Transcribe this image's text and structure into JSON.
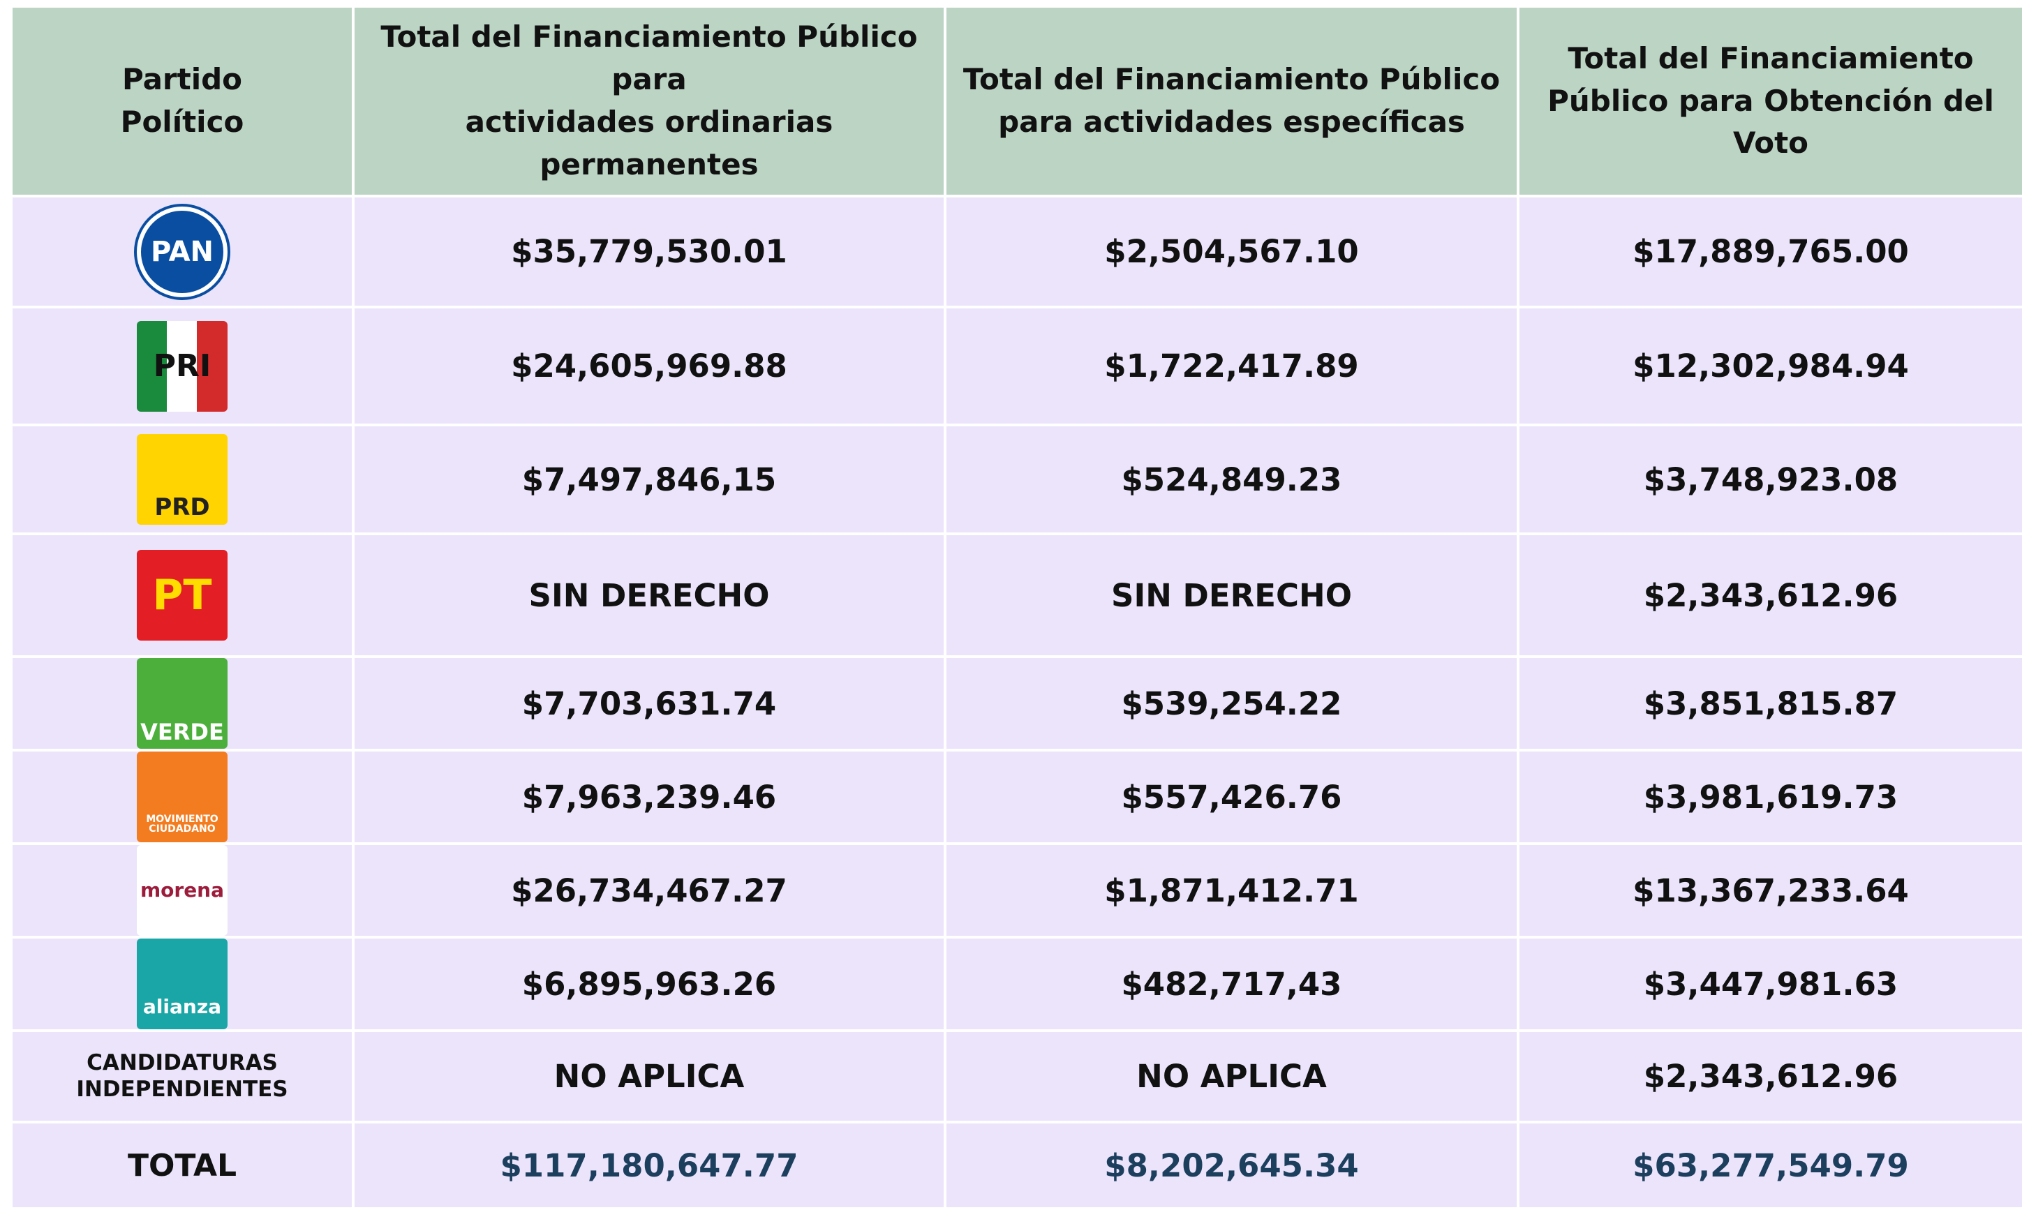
{
  "table": {
    "headers": [
      "Partido\nPolítico",
      "Total del Financiamiento Público para\nactividades ordinarias permanentes",
      "Total del Financiamiento Público\npara actividades  específicas",
      "Total del Financiamiento\nPúblico para Obtención del\nVoto"
    ],
    "rows": [
      {
        "logo": "PAN",
        "cells": [
          "$35,779,530.01",
          "$2,504,567.10",
          "$17,889,765.00"
        ]
      },
      {
        "logo": "PRI",
        "cells": [
          "$24,605,969.88",
          "$1,722,417.89",
          "$12,302,984.94"
        ]
      },
      {
        "logo": "PRD",
        "cells": [
          "$7,497,846,15",
          "$524,849.23",
          "$3,748,923.08"
        ]
      },
      {
        "logo": "PT",
        "cells": [
          "SIN DERECHO",
          "SIN DERECHO",
          "$2,343,612.96"
        ]
      },
      {
        "logo": "VERDE",
        "cells": [
          "$7,703,631.74",
          "$539,254.22",
          "$3,851,815.87"
        ]
      },
      {
        "logo": "MOVIMIENTO CIUDADANO",
        "cells": [
          "$7,963,239.46",
          "$557,426.76",
          "$3,981,619.73"
        ]
      },
      {
        "logo": "morena",
        "cells": [
          "$26,734,467.27",
          "$1,871,412.71",
          "$13,367,233.64"
        ]
      },
      {
        "logo": "alianza",
        "cells": [
          "$6,895,963.26",
          "$482,717,43",
          "$3,447,981.63"
        ]
      },
      {
        "party": "CANDIDATURAS\nINDEPENDIENTES",
        "cells": [
          "NO APLICA",
          "NO APLICA",
          "$2,343,612.96"
        ]
      },
      {
        "party": "TOTAL",
        "cells": [
          "$117,180,647.77",
          "$8,202,645.34",
          "$63,277,549.79"
        ]
      }
    ]
  }
}
